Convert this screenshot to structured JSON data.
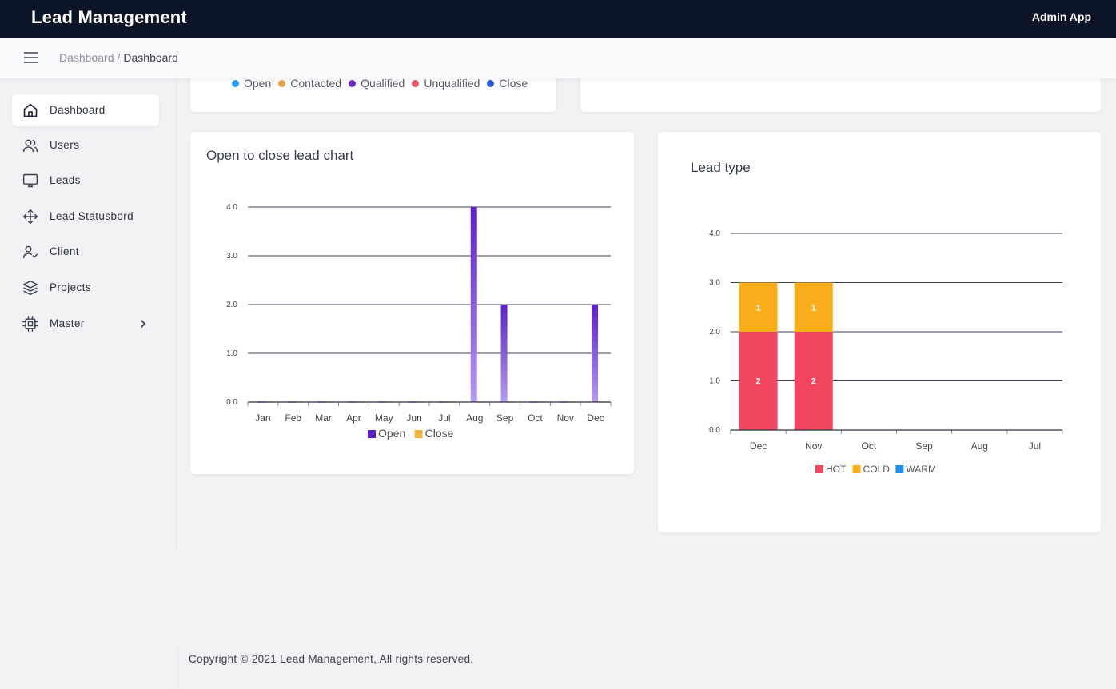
{
  "app": {
    "title": "Lead Management",
    "user_label": "Admin App"
  },
  "breadcrumb": {
    "parent": "Dashboard",
    "separator": "/",
    "current": "Dashboard"
  },
  "sidebar": {
    "items": [
      {
        "label": "Dashboard",
        "icon": "home-icon",
        "active": true
      },
      {
        "label": "Users",
        "icon": "users-icon"
      },
      {
        "label": "Leads",
        "icon": "monitor-icon"
      },
      {
        "label": "Lead Statusbord",
        "icon": "move-icon"
      },
      {
        "label": "Client",
        "icon": "user-check-icon"
      },
      {
        "label": "Projects",
        "icon": "layers-icon"
      },
      {
        "label": "Master",
        "icon": "cpu-icon",
        "has_submenu": true
      }
    ]
  },
  "status_legend": {
    "items": [
      {
        "label": "Open",
        "color": "#2a9df4"
      },
      {
        "label": "Contacted",
        "color": "#e6a04a"
      },
      {
        "label": "Qualified",
        "color": "#6a2bc4"
      },
      {
        "label": "Unqualified",
        "color": "#e5566a"
      },
      {
        "label": "Close",
        "color": "#2a5bd7"
      }
    ]
  },
  "open_close_card": {
    "title": "Open to close lead chart"
  },
  "lead_type_card": {
    "title": "Lead type"
  },
  "chart_data": [
    {
      "type": "bar",
      "title": "Open to close lead chart",
      "categories": [
        "Jan",
        "Feb",
        "Mar",
        "Apr",
        "May",
        "Jun",
        "Jul",
        "Aug",
        "Sep",
        "Oct",
        "Nov",
        "Dec"
      ],
      "series": [
        {
          "name": "Open",
          "color": "#5b21c9",
          "values": [
            0,
            0,
            0,
            0,
            0,
            0,
            0,
            4,
            2,
            0,
            0,
            2
          ]
        },
        {
          "name": "Close",
          "color": "#f4b43c",
          "values": [
            0,
            0,
            0,
            0,
            0,
            0,
            0,
            0,
            0,
            0,
            0,
            0
          ]
        }
      ],
      "yticks": [
        "0.0",
        "1.0",
        "2.0",
        "3.0",
        "4.0"
      ],
      "ylim": [
        0,
        4
      ],
      "grid": true,
      "legend_position": "bottom"
    },
    {
      "type": "bar",
      "stacked": true,
      "title": "Lead type",
      "categories": [
        "Dec",
        "Nov",
        "Oct",
        "Sep",
        "Aug",
        "Jul"
      ],
      "series": [
        {
          "name": "HOT",
          "color": "#f24560",
          "values": [
            2,
            2,
            0,
            0,
            0,
            0
          ]
        },
        {
          "name": "COLD",
          "color": "#fbae1c",
          "values": [
            1,
            1,
            0,
            0,
            0,
            0
          ]
        },
        {
          "name": "WARM",
          "color": "#1e8ee8",
          "values": [
            0,
            0,
            0,
            0,
            0,
            0
          ]
        }
      ],
      "yticks": [
        "0.0",
        "1.0",
        "2.0",
        "3.0",
        "4.0"
      ],
      "ylim": [
        0,
        4
      ],
      "grid": true,
      "data_labels": true,
      "legend_position": "bottom"
    }
  ],
  "footer": {
    "text": "Copyright © 2021 Lead Management, All rights reserved."
  }
}
